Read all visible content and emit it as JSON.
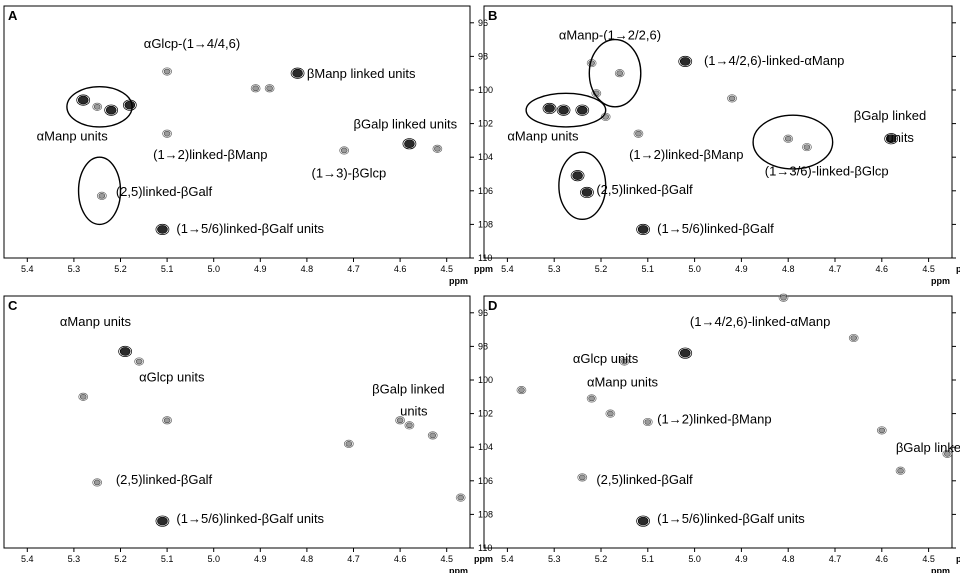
{
  "chart_data": [
    {
      "panel": "A",
      "type": "scatter",
      "xlabel": "ppm",
      "xlim": [
        5.45,
        4.45
      ],
      "ylim": [
        95,
        110
      ],
      "x_ticks": [
        "5.4",
        "5.3",
        "5.2",
        "5.1",
        "5.0",
        "4.9",
        "4.8",
        "4.7",
        "4.6",
        "4.5"
      ],
      "y_ticks": [
        "96",
        "98",
        "100",
        "102",
        "104",
        "106",
        "108",
        "110"
      ],
      "peaks": [
        {
          "x": 5.28,
          "y": 100.6,
          "dark": true
        },
        {
          "x": 5.22,
          "y": 101.2,
          "dark": true
        },
        {
          "x": 5.25,
          "y": 101.0,
          "dark": false
        },
        {
          "x": 5.18,
          "y": 100.9,
          "dark": true
        },
        {
          "x": 5.1,
          "y": 98.9,
          "dark": false
        },
        {
          "x": 5.1,
          "y": 102.6,
          "dark": false
        },
        {
          "x": 4.91,
          "y": 99.9,
          "dark": false
        },
        {
          "x": 4.88,
          "y": 99.9,
          "dark": false
        },
        {
          "x": 4.82,
          "y": 99.0,
          "dark": true
        },
        {
          "x": 4.72,
          "y": 103.6,
          "dark": false
        },
        {
          "x": 4.58,
          "y": 103.2,
          "dark": true
        },
        {
          "x": 4.52,
          "y": 103.5,
          "dark": false
        },
        {
          "x": 5.24,
          "y": 106.3,
          "dark": false
        },
        {
          "x": 5.11,
          "y": 108.3,
          "dark": true
        }
      ],
      "ellipses": [
        {
          "cx": 5.245,
          "cy": 101.0,
          "rx": 0.07,
          "ry": 1.2
        },
        {
          "cx": 5.245,
          "cy": 106.0,
          "rx": 0.045,
          "ry": 2.0
        }
      ],
      "annotations": [
        {
          "text": "αGlcp-(1→4/4,6)",
          "x": 5.15,
          "y": 97.5
        },
        {
          "text": "βManp linked units",
          "x": 4.8,
          "y": 99.3
        },
        {
          "text": "αManp units",
          "x": 5.38,
          "y": 103.0
        },
        {
          "text": "βGalp linked units",
          "x": 4.7,
          "y": 102.3
        },
        {
          "text": "(1→2)linked-βManp",
          "x": 5.13,
          "y": 104.1
        },
        {
          "text": "(1→3)-βGlcp",
          "x": 4.79,
          "y": 105.2
        },
        {
          "text": "(2,5)linked-βGalf",
          "x": 5.21,
          "y": 106.3
        },
        {
          "text": "(1→5/6)linked-βGalf units",
          "x": 5.08,
          "y": 108.5
        }
      ]
    },
    {
      "panel": "B",
      "type": "scatter",
      "xlabel": "ppm",
      "xlim": [
        5.45,
        4.45
      ],
      "ylim": [
        95,
        110
      ],
      "x_ticks": [
        "5.4",
        "5.3",
        "5.2",
        "5.1",
        "5.0",
        "4.9",
        "4.8",
        "4.7",
        "4.6",
        "4.5"
      ],
      "y_ticks": [
        "96",
        "98",
        "100",
        "102",
        "104",
        "106",
        "108",
        "110"
      ],
      "peaks": [
        {
          "x": 5.31,
          "y": 101.1,
          "dark": true
        },
        {
          "x": 5.28,
          "y": 101.2,
          "dark": true
        },
        {
          "x": 5.24,
          "y": 101.2,
          "dark": true
        },
        {
          "x": 5.22,
          "y": 98.4,
          "dark": false
        },
        {
          "x": 5.16,
          "y": 99.0,
          "dark": false
        },
        {
          "x": 5.21,
          "y": 100.2,
          "dark": false
        },
        {
          "x": 5.19,
          "y": 101.6,
          "dark": false
        },
        {
          "x": 5.12,
          "y": 102.6,
          "dark": false
        },
        {
          "x": 5.02,
          "y": 98.3,
          "dark": true
        },
        {
          "x": 4.92,
          "y": 100.5,
          "dark": false
        },
        {
          "x": 4.8,
          "y": 102.9,
          "dark": false
        },
        {
          "x": 4.76,
          "y": 103.4,
          "dark": false
        },
        {
          "x": 4.58,
          "y": 102.9,
          "dark": true
        },
        {
          "x": 5.25,
          "y": 105.1,
          "dark": true
        },
        {
          "x": 5.23,
          "y": 106.1,
          "dark": true
        },
        {
          "x": 5.11,
          "y": 108.3,
          "dark": true
        }
      ],
      "ellipses": [
        {
          "cx": 5.275,
          "cy": 101.2,
          "rx": 0.085,
          "ry": 1.0
        },
        {
          "cx": 5.17,
          "cy": 99.0,
          "rx": 0.055,
          "ry": 2.0
        },
        {
          "cx": 5.24,
          "cy": 105.7,
          "rx": 0.05,
          "ry": 2.0
        },
        {
          "cx": 4.79,
          "cy": 103.1,
          "rx": 0.085,
          "ry": 1.6
        }
      ],
      "annotations": [
        {
          "text": "αManp-(1→2/2,6)",
          "x": 5.29,
          "y": 97.0
        },
        {
          "text": "(1→4/2,6)-linked-αManp",
          "x": 4.98,
          "y": 98.5
        },
        {
          "text": "αManp units",
          "x": 5.4,
          "y": 103.0
        },
        {
          "text": "βGalp linked",
          "x": 4.66,
          "y": 101.8
        },
        {
          "text": "units",
          "x": 4.59,
          "y": 103.1
        },
        {
          "text": "(1→2)linked-βManp",
          "x": 5.14,
          "y": 104.1
        },
        {
          "text": "(1→3/6)-linked-βGlcp",
          "x": 4.85,
          "y": 105.1
        },
        {
          "text": "(2,5)linked-βGalf",
          "x": 5.21,
          "y": 106.2
        },
        {
          "text": "(1→5/6)linked-βGalf",
          "x": 5.08,
          "y": 108.5
        }
      ]
    },
    {
      "panel": "C",
      "type": "scatter",
      "xlabel": "ppm",
      "xlim": [
        5.45,
        4.45
      ],
      "ylim": [
        95,
        110
      ],
      "x_ticks": [
        "5.4",
        "5.3",
        "5.2",
        "5.1",
        "5.0",
        "4.9",
        "4.8",
        "4.7",
        "4.6",
        "4.5"
      ],
      "y_ticks": [
        "96",
        "98",
        "100",
        "102",
        "104",
        "106",
        "108",
        "110"
      ],
      "peaks": [
        {
          "x": 5.19,
          "y": 98.3,
          "dark": true
        },
        {
          "x": 5.16,
          "y": 98.9,
          "dark": false
        },
        {
          "x": 5.28,
          "y": 101.0,
          "dark": false
        },
        {
          "x": 5.1,
          "y": 102.4,
          "dark": false
        },
        {
          "x": 4.71,
          "y": 103.8,
          "dark": false
        },
        {
          "x": 4.6,
          "y": 102.4,
          "dark": false
        },
        {
          "x": 4.58,
          "y": 102.7,
          "dark": false
        },
        {
          "x": 4.53,
          "y": 103.3,
          "dark": false
        },
        {
          "x": 4.47,
          "y": 107.0,
          "dark": false
        },
        {
          "x": 5.25,
          "y": 106.1,
          "dark": false
        },
        {
          "x": 5.11,
          "y": 108.4,
          "dark": true
        }
      ],
      "ellipses": [],
      "annotations": [
        {
          "text": "αManp units",
          "x": 5.33,
          "y": 96.8
        },
        {
          "text": "αGlcp units",
          "x": 5.16,
          "y": 100.1
        },
        {
          "text": "βGalp linked",
          "x": 4.66,
          "y": 100.8
        },
        {
          "text": "units",
          "x": 4.6,
          "y": 102.1
        },
        {
          "text": "(2,5)linked-βGalf",
          "x": 5.21,
          "y": 106.2
        },
        {
          "text": "(1→5/6)linked-βGalf units",
          "x": 5.08,
          "y": 108.5
        }
      ]
    },
    {
      "panel": "D",
      "type": "scatter",
      "xlabel": "ppm",
      "xlim": [
        5.45,
        4.45
      ],
      "ylim": [
        95,
        110
      ],
      "x_ticks": [
        "5.4",
        "5.3",
        "5.2",
        "5.1",
        "5.0",
        "4.9",
        "4.8",
        "4.7",
        "4.6",
        "4.5"
      ],
      "y_ticks": [
        "96",
        "98",
        "100",
        "102",
        "104",
        "106",
        "108",
        "110"
      ],
      "peaks": [
        {
          "x": 4.81,
          "y": 95.1,
          "dark": false
        },
        {
          "x": 4.66,
          "y": 97.5,
          "dark": false
        },
        {
          "x": 5.02,
          "y": 98.4,
          "dark": true
        },
        {
          "x": 5.15,
          "y": 98.9,
          "dark": false
        },
        {
          "x": 5.37,
          "y": 100.6,
          "dark": false
        },
        {
          "x": 5.22,
          "y": 101.1,
          "dark": false
        },
        {
          "x": 5.18,
          "y": 102.0,
          "dark": false
        },
        {
          "x": 5.1,
          "y": 102.5,
          "dark": false
        },
        {
          "x": 4.6,
          "y": 103.0,
          "dark": false
        },
        {
          "x": 4.56,
          "y": 105.4,
          "dark": false
        },
        {
          "x": 4.46,
          "y": 104.4,
          "dark": false
        },
        {
          "x": 5.24,
          "y": 105.8,
          "dark": false
        },
        {
          "x": 5.11,
          "y": 108.4,
          "dark": true
        }
      ],
      "ellipses": [],
      "annotations": [
        {
          "text": "(1→4/2,6)-linked-αManp",
          "x": 5.01,
          "y": 96.8
        },
        {
          "text": "αGlcp units",
          "x": 5.26,
          "y": 99.0
        },
        {
          "text": "αManp units",
          "x": 5.23,
          "y": 100.4
        },
        {
          "text": "(1→2)linked-βManp",
          "x": 5.08,
          "y": 102.6
        },
        {
          "text": "βGalp linked units",
          "x": 4.57,
          "y": 104.3
        },
        {
          "text": "(2,5)linked-βGalf",
          "x": 5.21,
          "y": 106.2
        },
        {
          "text": "(1→5/6)linked-βGalf units",
          "x": 5.08,
          "y": 108.5
        }
      ]
    }
  ],
  "panel_labels": [
    "A",
    "B",
    "C",
    "D"
  ],
  "axis_unit": "ppm"
}
